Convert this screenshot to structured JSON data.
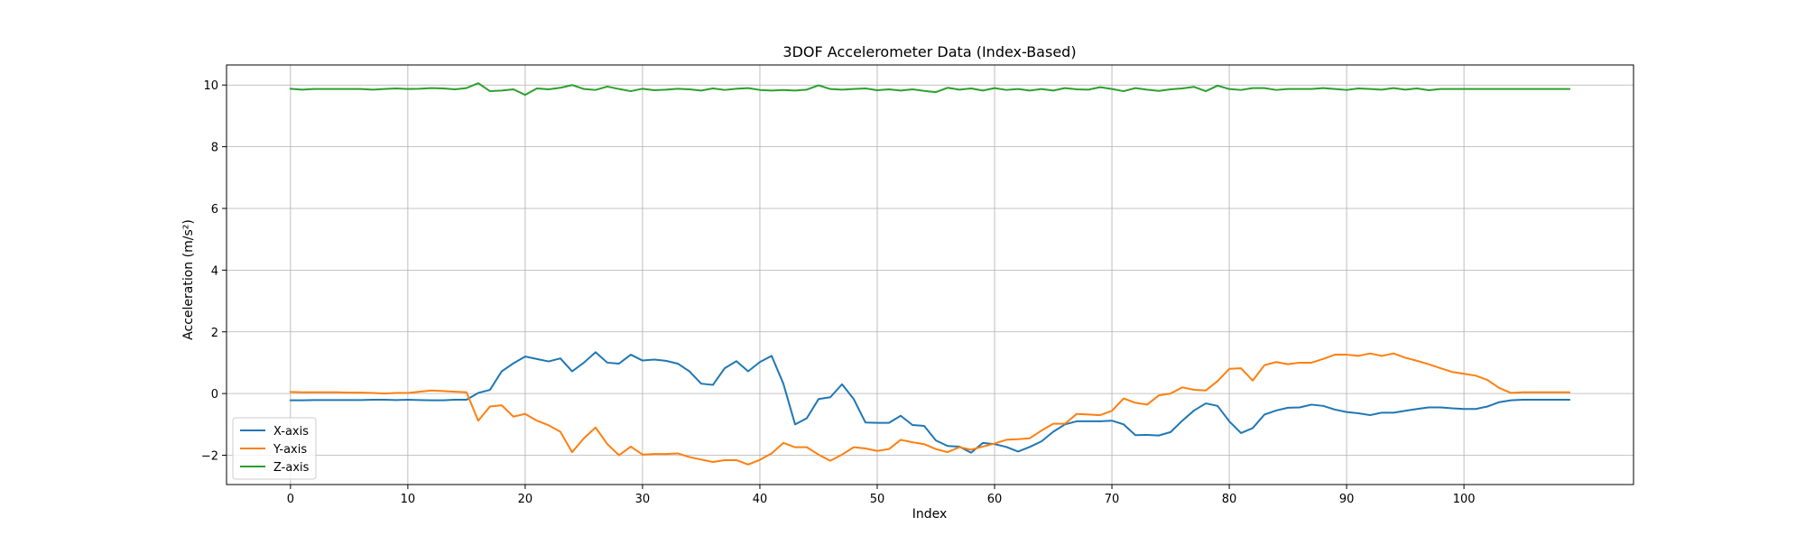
{
  "chart_data": {
    "type": "line",
    "title": "3DOF Accelerometer Data (Index-Based)",
    "xlabel": "Index",
    "ylabel": "Acceleration (m/s²)",
    "xlim": [
      -5.45,
      114.45
    ],
    "ylim": [
      -2.95,
      10.65
    ],
    "xticks": [
      0,
      10,
      20,
      30,
      40,
      50,
      60,
      70,
      80,
      90,
      100
    ],
    "yticks": [
      -2,
      0,
      2,
      4,
      6,
      8,
      10
    ],
    "x_tick_labels": [
      "0",
      "10",
      "20",
      "30",
      "40",
      "50",
      "60",
      "70",
      "80",
      "90",
      "100"
    ],
    "y_tick_labels": [
      "−2",
      "0",
      "2",
      "4",
      "6",
      "8",
      "10"
    ],
    "grid": true,
    "legend_position": "lower-left",
    "x": [
      0,
      1,
      2,
      3,
      4,
      5,
      6,
      7,
      8,
      9,
      10,
      11,
      12,
      13,
      14,
      15,
      16,
      17,
      18,
      19,
      20,
      21,
      22,
      23,
      24,
      25,
      26,
      27,
      28,
      29,
      30,
      31,
      32,
      33,
      34,
      35,
      36,
      37,
      38,
      39,
      40,
      41,
      42,
      43,
      44,
      45,
      46,
      47,
      48,
      49,
      50,
      51,
      52,
      53,
      54,
      55,
      56,
      57,
      58,
      59,
      60,
      61,
      62,
      63,
      64,
      65,
      66,
      67,
      68,
      69,
      70,
      71,
      72,
      73,
      74,
      75,
      76,
      77,
      78,
      79,
      80,
      81,
      82,
      83,
      84,
      85,
      86,
      87,
      88,
      89,
      90,
      91,
      92,
      93,
      94,
      95,
      96,
      97,
      98,
      99,
      100,
      101,
      102,
      103,
      104,
      105,
      106,
      107,
      108,
      109
    ],
    "series": [
      {
        "name": "X-axis",
        "color": "#1f77b4",
        "values": [
          -0.22,
          -0.22,
          -0.21,
          -0.21,
          -0.21,
          -0.21,
          -0.21,
          -0.2,
          -0.2,
          -0.21,
          -0.2,
          -0.21,
          -0.22,
          -0.22,
          -0.2,
          -0.2,
          0.02,
          0.12,
          0.72,
          0.98,
          1.2,
          1.12,
          1.04,
          1.14,
          0.72,
          1.0,
          1.34,
          1.0,
          0.97,
          1.26,
          1.07,
          1.1,
          1.06,
          0.97,
          0.72,
          0.32,
          0.28,
          0.82,
          1.05,
          0.72,
          1.02,
          1.22,
          0.32,
          -1.0,
          -0.8,
          -0.18,
          -0.12,
          0.3,
          -0.18,
          -0.94,
          -0.95,
          -0.95,
          -0.72,
          -1.02,
          -1.05,
          -1.52,
          -1.7,
          -1.72,
          -1.92,
          -1.6,
          -1.64,
          -1.73,
          -1.88,
          -1.73,
          -1.55,
          -1.24,
          -1.0,
          -0.9,
          -0.9,
          -0.9,
          -0.88,
          -1.0,
          -1.35,
          -1.34,
          -1.36,
          -1.25,
          -0.88,
          -0.55,
          -0.32,
          -0.4,
          -0.9,
          -1.28,
          -1.12,
          -0.68,
          -0.55,
          -0.46,
          -0.45,
          -0.36,
          -0.4,
          -0.52,
          -0.6,
          -0.64,
          -0.7,
          -0.62,
          -0.62,
          -0.56,
          -0.5,
          -0.45,
          -0.45,
          -0.48,
          -0.5,
          -0.5,
          -0.42,
          -0.28,
          -0.22,
          -0.2,
          -0.2,
          -0.2,
          -0.2,
          -0.2
        ]
      },
      {
        "name": "Y-axis",
        "color": "#ff7f0e",
        "values": [
          0.05,
          0.04,
          0.04,
          0.04,
          0.04,
          0.03,
          0.03,
          0.02,
          0.0,
          0.02,
          0.02,
          0.06,
          0.1,
          0.08,
          0.06,
          0.04,
          -0.88,
          -0.42,
          -0.38,
          -0.75,
          -0.66,
          -0.88,
          -1.03,
          -1.24,
          -1.9,
          -1.45,
          -1.1,
          -1.64,
          -2.0,
          -1.72,
          -1.98,
          -1.96,
          -1.96,
          -1.94,
          -2.06,
          -2.14,
          -2.22,
          -2.16,
          -2.16,
          -2.3,
          -2.15,
          -1.94,
          -1.6,
          -1.74,
          -1.74,
          -1.98,
          -2.18,
          -1.98,
          -1.74,
          -1.78,
          -1.86,
          -1.8,
          -1.5,
          -1.58,
          -1.64,
          -1.8,
          -1.9,
          -1.74,
          -1.82,
          -1.72,
          -1.62,
          -1.5,
          -1.48,
          -1.45,
          -1.2,
          -0.98,
          -0.98,
          -0.66,
          -0.68,
          -0.7,
          -0.56,
          -0.16,
          -0.3,
          -0.36,
          -0.06,
          0.0,
          0.2,
          0.12,
          0.1,
          0.4,
          0.8,
          0.82,
          0.42,
          0.92,
          1.02,
          0.95,
          1.0,
          1.0,
          1.12,
          1.26,
          1.26,
          1.22,
          1.3,
          1.22,
          1.3,
          1.16,
          1.06,
          0.95,
          0.82,
          0.7,
          0.64,
          0.58,
          0.44,
          0.18,
          0.02,
          0.04,
          0.04,
          0.04,
          0.04,
          0.04
        ]
      },
      {
        "name": "Z-axis",
        "color": "#2ca02c",
        "values": [
          9.88,
          9.85,
          9.87,
          9.87,
          9.87,
          9.87,
          9.87,
          9.85,
          9.87,
          9.89,
          9.87,
          9.88,
          9.9,
          9.89,
          9.86,
          9.9,
          10.06,
          9.8,
          9.82,
          9.86,
          9.68,
          9.89,
          9.86,
          9.91,
          10.0,
          9.87,
          9.84,
          9.95,
          9.87,
          9.8,
          9.88,
          9.83,
          9.85,
          9.88,
          9.86,
          9.82,
          9.89,
          9.84,
          9.88,
          9.9,
          9.84,
          9.82,
          9.84,
          9.82,
          9.85,
          9.99,
          9.87,
          9.85,
          9.87,
          9.89,
          9.83,
          9.86,
          9.82,
          9.86,
          9.81,
          9.77,
          9.91,
          9.85,
          9.89,
          9.82,
          9.9,
          9.84,
          9.87,
          9.82,
          9.87,
          9.82,
          9.9,
          9.86,
          9.85,
          9.93,
          9.87,
          9.8,
          9.9,
          9.85,
          9.81,
          9.86,
          9.89,
          9.94,
          9.8,
          9.98,
          9.87,
          9.84,
          9.9,
          9.9,
          9.84,
          9.87,
          9.87,
          9.87,
          9.9,
          9.87,
          9.84,
          9.89,
          9.87,
          9.85,
          9.9,
          9.85,
          9.89,
          9.83,
          9.87,
          9.87,
          9.87,
          9.87,
          9.87,
          9.87,
          9.87,
          9.87,
          9.87,
          9.87,
          9.87,
          9.87
        ]
      }
    ]
  }
}
